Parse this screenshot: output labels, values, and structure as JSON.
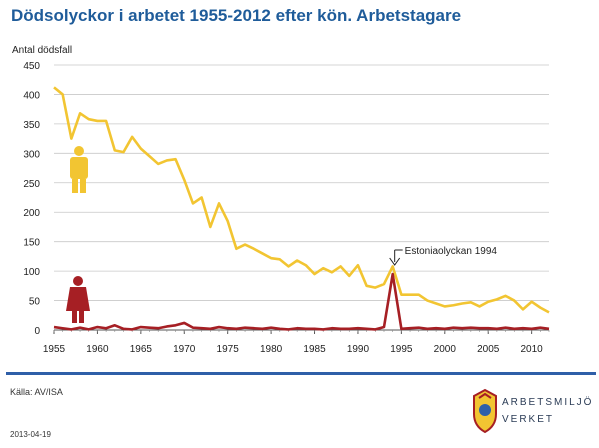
{
  "title": "Dödsolyckor i arbetet 1955-2012 efter kön. Arbetstagare",
  "source": "Källa: AV/ISA",
  "date": "2013-04-19",
  "logo": {
    "line1": "ARBETSMILJÖ",
    "line2": "VERKET"
  },
  "colors": {
    "men": "#f2c532",
    "women": "#a61f24",
    "title": "#1f5c9a",
    "rule": "#2f5fa8"
  },
  "icons": {
    "men": "man-figure-icon",
    "women": "woman-figure-icon",
    "logo": "crest-icon"
  },
  "chart_data": {
    "type": "line",
    "title": "Dödsolyckor i arbetet 1955-2012 efter kön. Arbetstagare",
    "ylabel": "Antal dödsfall",
    "xlabel": "",
    "xlim": [
      1955,
      2012
    ],
    "ylim": [
      0,
      450
    ],
    "grid": true,
    "legend": "icons (man figure = men, woman figure = women)",
    "x_ticks": [
      "1955",
      "1960",
      "1965",
      "1970",
      "1975",
      "1980",
      "1985",
      "1990",
      "1995",
      "2000",
      "2005",
      "2010"
    ],
    "y_ticks": [
      "0",
      "50",
      "100",
      "150",
      "200",
      "250",
      "300",
      "350",
      "400",
      "450"
    ],
    "annotation": {
      "text": "Estoniaolyckan 1994",
      "x": 1994
    },
    "x": [
      1955,
      1956,
      1957,
      1958,
      1959,
      1960,
      1961,
      1962,
      1963,
      1964,
      1965,
      1966,
      1967,
      1968,
      1969,
      1970,
      1971,
      1972,
      1973,
      1974,
      1975,
      1976,
      1977,
      1978,
      1979,
      1980,
      1981,
      1982,
      1983,
      1984,
      1985,
      1986,
      1987,
      1988,
      1989,
      1990,
      1991,
      1992,
      1993,
      1994,
      1995,
      1996,
      1997,
      1998,
      1999,
      2000,
      2001,
      2002,
      2003,
      2004,
      2005,
      2006,
      2007,
      2008,
      2009,
      2010,
      2011,
      2012
    ],
    "series": [
      {
        "values": [
          412,
          400,
          325,
          368,
          358,
          355,
          355,
          305,
          302,
          328,
          308,
          295,
          282,
          288,
          290,
          255,
          215,
          225,
          175,
          215,
          185,
          138,
          145,
          138,
          130,
          122,
          120,
          108,
          118,
          110,
          95,
          105,
          98,
          108,
          92,
          110,
          75,
          72,
          78,
          108,
          60,
          60,
          60,
          50,
          45,
          40,
          42,
          45,
          47,
          40,
          48,
          52,
          58,
          50,
          35,
          48,
          38,
          30
        ]
      },
      {
        "values": [
          5,
          3,
          1,
          4,
          1,
          5,
          3,
          8,
          2,
          1,
          5,
          4,
          3,
          6,
          8,
          12,
          4,
          3,
          2,
          5,
          3,
          2,
          4,
          3,
          2,
          4,
          2,
          1,
          3,
          2,
          2,
          1,
          3,
          2,
          2,
          3,
          2,
          1,
          5,
          95,
          2,
          3,
          4,
          2,
          3,
          2,
          4,
          3,
          4,
          3,
          3,
          2,
          4,
          2,
          3,
          2,
          4,
          2
        ]
      }
    ]
  }
}
